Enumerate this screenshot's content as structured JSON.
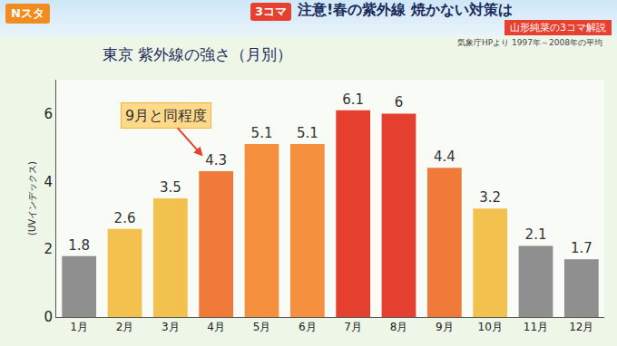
{
  "header": {
    "program": "Nスタ",
    "badge": "3コマ",
    "headline": "注意!春の紫外線 焼かない対策は",
    "segment": "山形純菜の3コマ解説"
  },
  "chart_data": {
    "type": "bar",
    "title": "東京 紫外線の強さ（月別）",
    "subtitle": "気象庁HPより 1997年～2008年の平均",
    "y_label": "(UVインデックス)",
    "categories": [
      "1月",
      "2月",
      "3月",
      "4月",
      "5月",
      "6月",
      "7月",
      "8月",
      "9月",
      "10月",
      "11月",
      "12月"
    ],
    "values": [
      1.8,
      2.6,
      3.5,
      4.3,
      5.1,
      5.1,
      6.1,
      6.0,
      4.4,
      3.2,
      2.1,
      1.7
    ],
    "colors": [
      "#8f8f8f",
      "#f2c14e",
      "#f2c14e",
      "#f07a3a",
      "#f4903e",
      "#f4903e",
      "#e5402f",
      "#e5402f",
      "#f07a3a",
      "#f2c14e",
      "#8f8f8f",
      "#8f8f8f"
    ],
    "ylim": [
      0,
      7
    ],
    "yticks": [
      0,
      2,
      4,
      6
    ],
    "grid": false,
    "data_labels": true,
    "annotations": [
      {
        "text": "9月と同程度",
        "category": "4月"
      }
    ]
  }
}
